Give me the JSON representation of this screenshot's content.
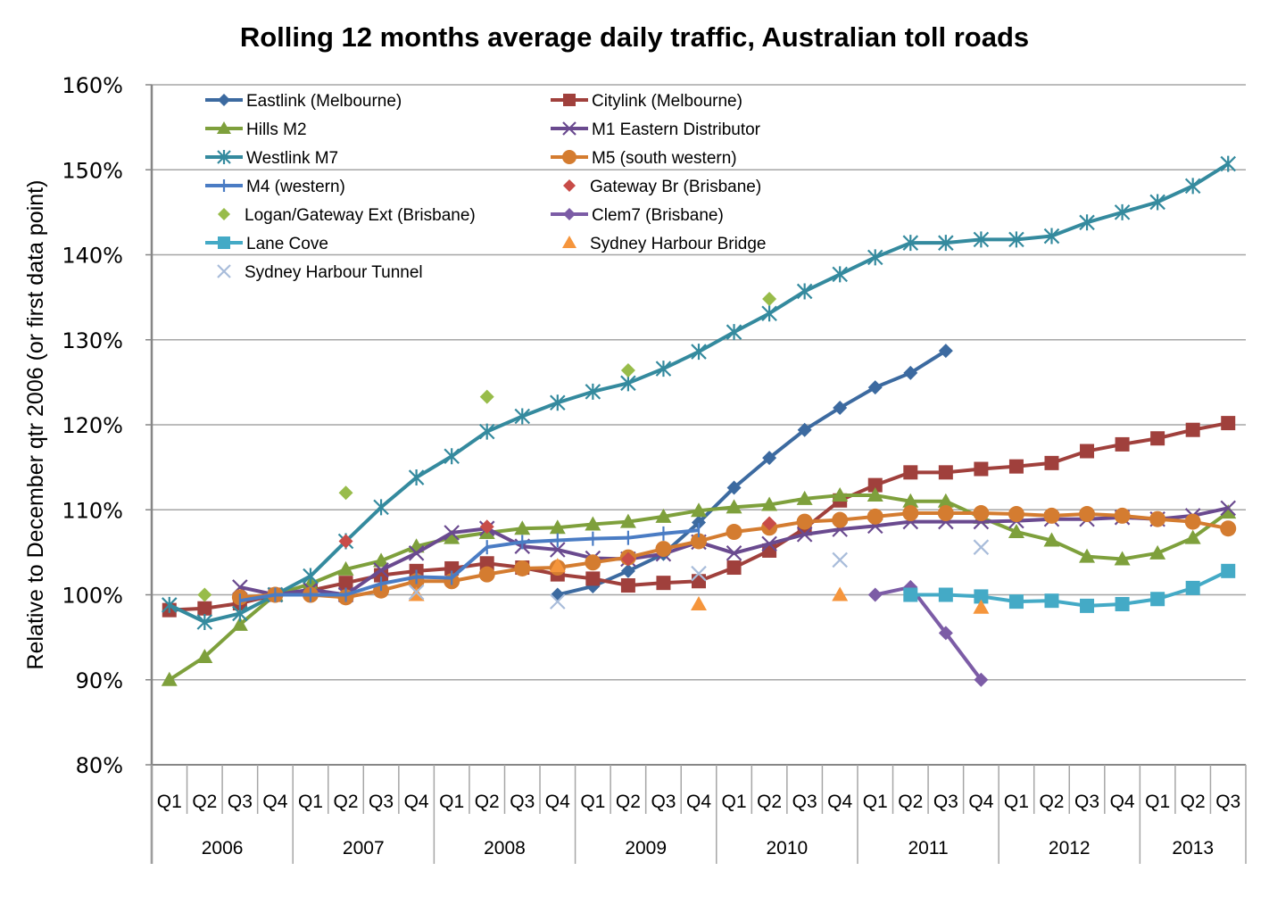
{
  "chart_data": {
    "type": "line",
    "title": "Rolling 12 months average daily traffic, Australian toll roads",
    "xlabel": "",
    "ylabel": "Relative to December qtr 2006 (or first data point)",
    "ylim": [
      80,
      160
    ],
    "yticks": [
      "80%",
      "90%",
      "100%",
      "110%",
      "120%",
      "130%",
      "140%",
      "150%",
      "160%"
    ],
    "ytick_values": [
      80,
      90,
      100,
      110,
      120,
      130,
      140,
      150,
      160
    ],
    "grid": true,
    "legend_position": "top-left",
    "categories": [
      "Q1",
      "Q2",
      "Q3",
      "Q4",
      "Q1",
      "Q2",
      "Q3",
      "Q4",
      "Q1",
      "Q2",
      "Q3",
      "Q4",
      "Q1",
      "Q2",
      "Q3",
      "Q4",
      "Q1",
      "Q2",
      "Q3",
      "Q4",
      "Q1",
      "Q2",
      "Q3",
      "Q4",
      "Q1",
      "Q2",
      "Q3",
      "Q4",
      "Q1",
      "Q2",
      "Q3"
    ],
    "years": [
      {
        "label": "2006",
        "quarters": 4
      },
      {
        "label": "2007",
        "quarters": 4
      },
      {
        "label": "2008",
        "quarters": 4
      },
      {
        "label": "2009",
        "quarters": 4
      },
      {
        "label": "2010",
        "quarters": 4
      },
      {
        "label": "2011",
        "quarters": 4
      },
      {
        "label": "2012",
        "quarters": 4
      },
      {
        "label": "2013",
        "quarters": 3
      }
    ],
    "series": [
      {
        "name": "Eastlink (Melbourne)",
        "color": "#3c6aa0",
        "marker": "diamond",
        "line": true,
        "values": [
          null,
          null,
          null,
          null,
          null,
          null,
          null,
          null,
          null,
          null,
          null,
          100.0,
          101.0,
          102.8,
          104.8,
          108.5,
          112.6,
          116.1,
          119.4,
          122.0,
          124.4,
          126.1,
          128.7,
          null,
          null,
          null,
          null,
          null,
          null,
          null,
          null
        ]
      },
      {
        "name": "Citylink (Melbourne)",
        "color": "#a0403c",
        "marker": "square",
        "line": true,
        "values": [
          98.2,
          98.4,
          99.0,
          100.0,
          100.5,
          101.4,
          102.3,
          102.8,
          103.1,
          103.7,
          103.2,
          102.4,
          101.9,
          101.1,
          101.4,
          101.6,
          103.2,
          105.2,
          107.8,
          111.1,
          112.9,
          114.4,
          114.4,
          114.8,
          115.1,
          115.5,
          116.9,
          117.7,
          118.4,
          119.4,
          120.2
        ]
      },
      {
        "name": "Hills M2",
        "color": "#7ea03c",
        "marker": "triangle",
        "line": true,
        "values": [
          90.0,
          92.7,
          96.5,
          100.0,
          101.3,
          103.0,
          104.0,
          105.7,
          106.7,
          107.3,
          107.8,
          107.9,
          108.3,
          108.6,
          109.2,
          109.9,
          110.3,
          110.6,
          111.3,
          111.7,
          111.7,
          111.0,
          111.0,
          109.1,
          107.4,
          106.4,
          104.5,
          104.2,
          104.9,
          106.7,
          109.7
        ]
      },
      {
        "name": "M1 Eastern Distributor",
        "color": "#6a4a8f",
        "marker": "x",
        "line": true,
        "values": [
          null,
          null,
          100.9,
          100.0,
          100.6,
          100.0,
          102.9,
          104.9,
          107.3,
          107.8,
          105.7,
          105.3,
          104.3,
          104.2,
          104.8,
          106.2,
          104.9,
          106.0,
          107.1,
          107.7,
          108.1,
          108.6,
          108.6,
          108.6,
          108.7,
          108.9,
          108.9,
          109.1,
          108.9,
          109.3,
          110.2
        ]
      },
      {
        "name": "Westlink M7",
        "color": "#348a9e",
        "marker": "asterisk",
        "line": true,
        "values": [
          98.8,
          96.8,
          97.8,
          100.0,
          102.2,
          106.3,
          110.3,
          113.8,
          116.3,
          119.2,
          121.0,
          122.6,
          123.9,
          124.9,
          126.6,
          128.6,
          130.9,
          133.1,
          135.7,
          137.7,
          139.7,
          141.4,
          141.4,
          141.8,
          141.8,
          142.2,
          143.8,
          145.0,
          146.2,
          148.1,
          150.7
        ]
      },
      {
        "name": "M5 (south western)",
        "color": "#d47c30",
        "marker": "circle",
        "line": true,
        "values": [
          null,
          null,
          99.7,
          100.0,
          100.0,
          99.7,
          100.5,
          101.6,
          101.6,
          102.4,
          103.1,
          103.2,
          103.8,
          104.4,
          105.4,
          106.3,
          107.4,
          107.9,
          108.6,
          108.8,
          109.2,
          109.6,
          109.6,
          109.6,
          109.5,
          109.3,
          109.5,
          109.3,
          108.9,
          108.6,
          107.8
        ]
      },
      {
        "name": "M4 (western)",
        "color": "#4a7cc4",
        "marker": "plus",
        "line": true,
        "values": [
          null,
          null,
          99.3,
          100.0,
          100.0,
          100.0,
          101.3,
          102.1,
          102.0,
          105.6,
          106.2,
          106.4,
          106.6,
          106.7,
          107.2,
          107.6,
          null,
          null,
          null,
          null,
          null,
          null,
          null,
          null,
          null,
          null,
          null,
          null,
          null,
          null,
          null
        ]
      },
      {
        "name": "Gateway Br (Brisbane)",
        "color": "#c84c48",
        "marker": "diamond",
        "line": false,
        "values": [
          null,
          null,
          null,
          null,
          null,
          106.3,
          null,
          null,
          null,
          108.0,
          null,
          null,
          null,
          104.2,
          null,
          null,
          null,
          108.4,
          null,
          null,
          null,
          null,
          null,
          null,
          null,
          null,
          null,
          null,
          null,
          null,
          null
        ]
      },
      {
        "name": "Logan/Gateway Ext (Brisbane)",
        "color": "#98bc4a",
        "marker": "diamond",
        "line": false,
        "values": [
          null,
          100.0,
          null,
          null,
          null,
          112.0,
          null,
          null,
          null,
          123.3,
          null,
          null,
          null,
          126.4,
          null,
          null,
          null,
          134.8,
          null,
          null,
          null,
          null,
          null,
          null,
          null,
          null,
          null,
          null,
          null,
          null,
          null
        ]
      },
      {
        "name": "Clem7 (Brisbane)",
        "color": "#7c5ca6",
        "marker": "diamond",
        "line": true,
        "values": [
          null,
          null,
          null,
          null,
          null,
          null,
          null,
          null,
          null,
          null,
          null,
          null,
          null,
          null,
          null,
          null,
          null,
          null,
          null,
          null,
          100.0,
          100.9,
          95.5,
          90.0,
          null,
          null,
          null,
          null,
          null,
          null,
          null
        ]
      },
      {
        "name": "Lane Cove",
        "color": "#44aac6",
        "marker": "square",
        "line": true,
        "values": [
          null,
          null,
          null,
          null,
          null,
          null,
          null,
          null,
          null,
          null,
          null,
          null,
          null,
          null,
          null,
          null,
          null,
          null,
          null,
          null,
          null,
          100.0,
          100.0,
          99.8,
          99.2,
          99.3,
          98.7,
          98.9,
          99.5,
          100.8,
          102.8
        ]
      },
      {
        "name": "Sydney Harbour Bridge",
        "color": "#f5953c",
        "marker": "triangle",
        "line": false,
        "values": [
          null,
          null,
          null,
          null,
          null,
          null,
          null,
          100.0,
          null,
          null,
          null,
          103.4,
          null,
          null,
          null,
          98.9,
          null,
          null,
          null,
          100.0,
          null,
          null,
          null,
          98.5,
          null,
          null,
          null,
          null,
          null,
          null,
          null
        ]
      },
      {
        "name": "Sydney Harbour Tunnel",
        "color": "#a8bcda",
        "marker": "x",
        "line": false,
        "values": [
          null,
          null,
          null,
          null,
          null,
          null,
          null,
          100.3,
          null,
          null,
          null,
          99.2,
          null,
          null,
          null,
          102.5,
          null,
          null,
          null,
          104.1,
          null,
          null,
          null,
          105.6,
          null,
          null,
          null,
          null,
          null,
          null,
          null
        ]
      }
    ]
  }
}
